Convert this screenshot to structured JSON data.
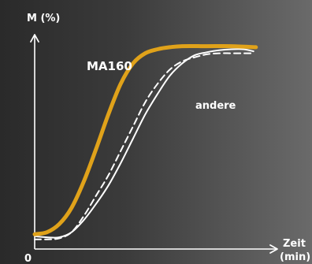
{
  "chart_data": {
    "type": "line",
    "xlabel": "Zeit\n(min)",
    "xlabel_lines": [
      "Zeit",
      "(min)"
    ],
    "ylabel": "M (%)",
    "origin_label": "0",
    "grid": false,
    "legend": "none",
    "series": [
      {
        "name": "MA160",
        "color": "#E0A21A",
        "style": "solid",
        "points": [
          [
            0,
            3
          ],
          [
            5,
            4
          ],
          [
            10,
            8
          ],
          [
            15,
            16
          ],
          [
            20,
            29
          ],
          [
            25,
            45
          ],
          [
            30,
            62
          ],
          [
            35,
            77
          ],
          [
            40,
            87
          ],
          [
            45,
            92
          ],
          [
            50,
            94
          ],
          [
            55,
            95
          ],
          [
            60,
            95.5
          ],
          [
            70,
            95.5
          ],
          [
            80,
            95.5
          ],
          [
            90,
            95
          ]
        ]
      },
      {
        "name": "andere",
        "color": "#FFFFFF",
        "style": "solid",
        "points": [
          [
            0,
            2
          ],
          [
            5,
            1.5
          ],
          [
            10,
            1.5
          ],
          [
            15,
            4
          ],
          [
            20,
            10
          ],
          [
            25,
            18
          ],
          [
            30,
            27
          ],
          [
            35,
            38
          ],
          [
            40,
            50
          ],
          [
            45,
            62
          ],
          [
            50,
            72
          ],
          [
            55,
            81
          ],
          [
            60,
            87
          ],
          [
            65,
            91
          ],
          [
            70,
            92.5
          ],
          [
            75,
            93.5
          ],
          [
            80,
            94
          ],
          [
            85,
            94
          ],
          [
            89,
            93
          ]
        ]
      },
      {
        "name": "andere-dashed",
        "color": "#FFFFFF",
        "style": "dashed",
        "points": [
          [
            0,
            0.5
          ],
          [
            5,
            0.5
          ],
          [
            10,
            1
          ],
          [
            15,
            4
          ],
          [
            20,
            12
          ],
          [
            25,
            22
          ],
          [
            30,
            32
          ],
          [
            35,
            44
          ],
          [
            40,
            56
          ],
          [
            45,
            68
          ],
          [
            50,
            77
          ],
          [
            55,
            84
          ],
          [
            60,
            88
          ],
          [
            65,
            90
          ],
          [
            70,
            91.5
          ],
          [
            75,
            92
          ],
          [
            80,
            92
          ],
          [
            85,
            92
          ],
          [
            89,
            92
          ]
        ]
      }
    ],
    "annotations": [
      {
        "text": "MA160",
        "series": "MA160"
      },
      {
        "text": "andere",
        "series": "andere"
      }
    ]
  }
}
